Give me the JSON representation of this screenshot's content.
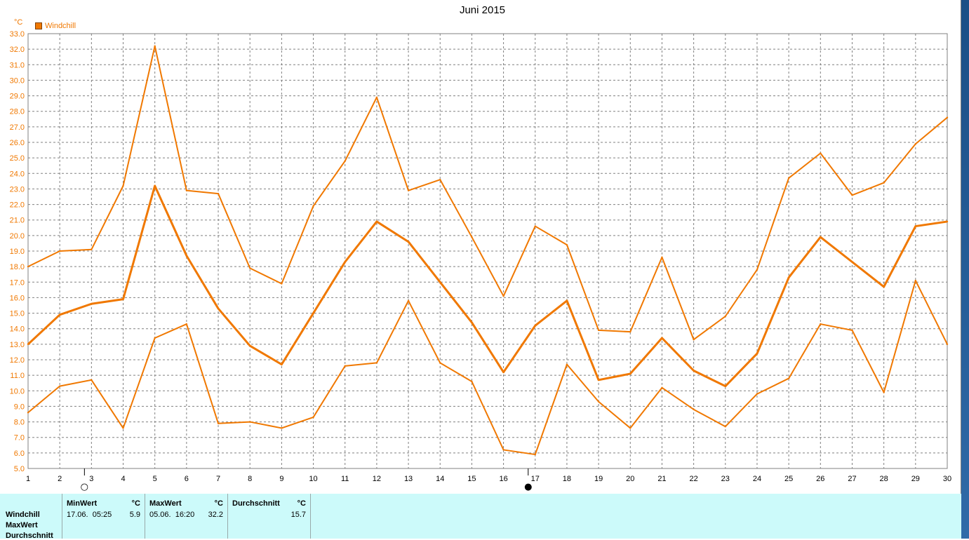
{
  "title": "Juni 2015",
  "unit": "°C",
  "legend": "Windchill",
  "colors": {
    "series": "#f07800",
    "grid": "#808080",
    "panel": "#ccfafa"
  },
  "moon_icons": [
    {
      "name": "full-moon-icon",
      "day": 3,
      "glyph": "○"
    },
    {
      "name": "new-moon-icon",
      "day": 17,
      "glyph": "●"
    }
  ],
  "chart_data": {
    "type": "line",
    "title": "Juni 2015",
    "ylabel": "°C",
    "ylim": [
      5.0,
      33.0
    ],
    "xlim": [
      1,
      30
    ],
    "grid": true,
    "legend_position": "top-left",
    "x": [
      1,
      2,
      3,
      4,
      5,
      6,
      7,
      8,
      9,
      10,
      11,
      12,
      13,
      14,
      15,
      16,
      17,
      18,
      19,
      20,
      21,
      22,
      23,
      24,
      25,
      26,
      27,
      28,
      29,
      30
    ],
    "x_tick_labels": [
      "1",
      "2",
      "3",
      "4",
      "5",
      "6",
      "7",
      "8",
      "9",
      "10",
      "11",
      "12",
      "13",
      "14",
      "15",
      "16",
      "17",
      "18",
      "19",
      "20",
      "21",
      "22",
      "23",
      "24",
      "25",
      "26",
      "27",
      "28",
      "29",
      "30"
    ],
    "y_tick_labels": [
      "5.0",
      "6.0",
      "7.0",
      "8.0",
      "9.0",
      "10.0",
      "11.0",
      "12.0",
      "13.0",
      "14.0",
      "15.0",
      "16.0",
      "17.0",
      "18.0",
      "19.0",
      "20.0",
      "21.0",
      "22.0",
      "23.0",
      "24.0",
      "25.0",
      "26.0",
      "27.0",
      "28.0",
      "29.0",
      "30.0",
      "31.0",
      "32.0",
      "33.0"
    ],
    "series": [
      {
        "name": "Windchill",
        "role": "max",
        "stroke": 2,
        "values": [
          18.0,
          19.0,
          19.1,
          23.2,
          32.2,
          22.9,
          22.7,
          17.9,
          16.9,
          21.9,
          24.8,
          28.9,
          22.9,
          23.6,
          19.9,
          16.1,
          20.6,
          19.4,
          13.9,
          13.8,
          18.6,
          13.3,
          14.8,
          17.8,
          23.7,
          25.3,
          22.6,
          23.4,
          25.9,
          27.6
        ]
      },
      {
        "name": "Windchill",
        "role": "average",
        "stroke": 3,
        "values": [
          13.0,
          14.9,
          15.6,
          15.9,
          23.2,
          18.7,
          15.3,
          12.9,
          11.7,
          15.0,
          18.3,
          20.9,
          19.6,
          17.0,
          14.4,
          11.2,
          14.2,
          15.8,
          10.7,
          11.1,
          13.4,
          11.3,
          10.3,
          12.4,
          17.3,
          19.9,
          18.3,
          16.7,
          20.6,
          20.9
        ]
      },
      {
        "name": "Windchill",
        "role": "min",
        "stroke": 2,
        "values": [
          8.6,
          10.3,
          10.7,
          7.6,
          13.4,
          14.3,
          7.9,
          8.0,
          7.6,
          8.3,
          11.6,
          11.8,
          15.8,
          11.8,
          10.6,
          6.2,
          5.9,
          11.7,
          9.3,
          7.6,
          10.2,
          8.8,
          7.7,
          9.8,
          10.8,
          14.3,
          13.9,
          9.9,
          17.1,
          13.0
        ]
      }
    ]
  },
  "stats": {
    "row_labels": [
      "Windchill",
      "MaxWert",
      "Durchschnitt"
    ],
    "min": {
      "header": "MinWert",
      "unit": "°C",
      "date": "17.06.  05:25",
      "value": "5.9"
    },
    "max": {
      "header": "MaxWert",
      "unit": "°C",
      "date": "05.06.  16:20",
      "value": "32.2"
    },
    "avg": {
      "header": "Durchschnitt",
      "unit": "°C",
      "value": "15.7"
    }
  }
}
